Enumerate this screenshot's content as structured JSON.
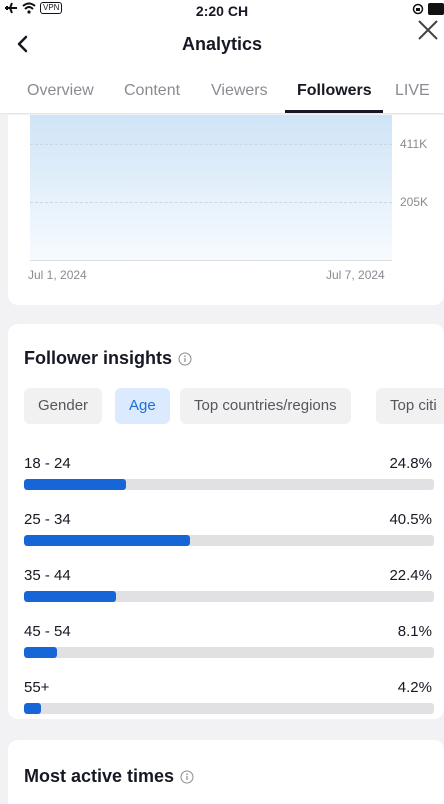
{
  "status": {
    "time": "2:20 CH",
    "vpn_badge": "VPN"
  },
  "header": {
    "title": "Analytics"
  },
  "tabs": [
    {
      "label": "Overview"
    },
    {
      "label": "Content"
    },
    {
      "label": "Viewers"
    },
    {
      "label": "Followers",
      "active": true
    },
    {
      "label": "LIVE"
    }
  ],
  "trend_chart": {
    "y_ticks": [
      "411K",
      "205K"
    ],
    "x_ticks": [
      "Jul 1, 2024",
      "Jul 7, 2024"
    ]
  },
  "insights": {
    "title": "Follower insights",
    "chips": [
      {
        "label": "Gender"
      },
      {
        "label": "Age",
        "active": true
      },
      {
        "label": "Top countries/regions"
      },
      {
        "label": "Top citi"
      }
    ],
    "age_groups": [
      {
        "label": "18 - 24",
        "pct": "24.8%",
        "value": 24.8
      },
      {
        "label": "25 - 34",
        "pct": "40.5%",
        "value": 40.5
      },
      {
        "label": "35 - 44",
        "pct": "22.4%",
        "value": 22.4
      },
      {
        "label": "45 - 54",
        "pct": "8.1%",
        "value": 8.1
      },
      {
        "label": "55+",
        "pct": "4.2%",
        "value": 4.2
      }
    ]
  },
  "active_times": {
    "title": "Most active times"
  },
  "colors": {
    "accent": "#1666d8",
    "chip_active_bg": "#dbeaff",
    "track": "#e1e1e3"
  }
}
